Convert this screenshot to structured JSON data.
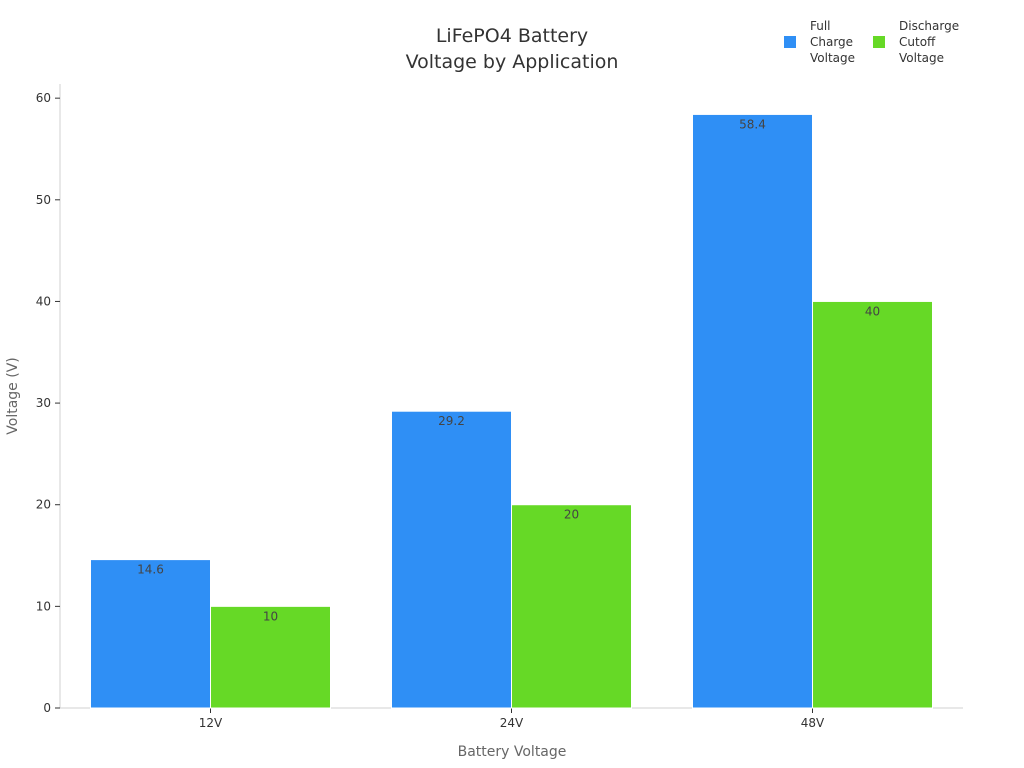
{
  "chart_data": {
    "type": "bar",
    "title_lines": [
      "LiFePO4 Battery",
      "Voltage by Application"
    ],
    "xlabel": "Battery Voltage",
    "ylabel": "Voltage (V)",
    "categories": [
      "12V",
      "24V",
      "48V"
    ],
    "ylim": [
      0,
      61
    ],
    "yticks": [
      0,
      10,
      20,
      30,
      40,
      50,
      60
    ],
    "grid": false,
    "legend_position": "top-right",
    "series": [
      {
        "name_lines": [
          "Full",
          "Charge",
          "Voltage"
        ],
        "color": "#2f8ff5",
        "values": [
          14.6,
          29.2,
          58.4
        ]
      },
      {
        "name_lines": [
          "Discharge",
          "Cutoff",
          "Voltage"
        ],
        "color": "#66d926",
        "values": [
          10,
          20,
          40
        ]
      }
    ]
  }
}
